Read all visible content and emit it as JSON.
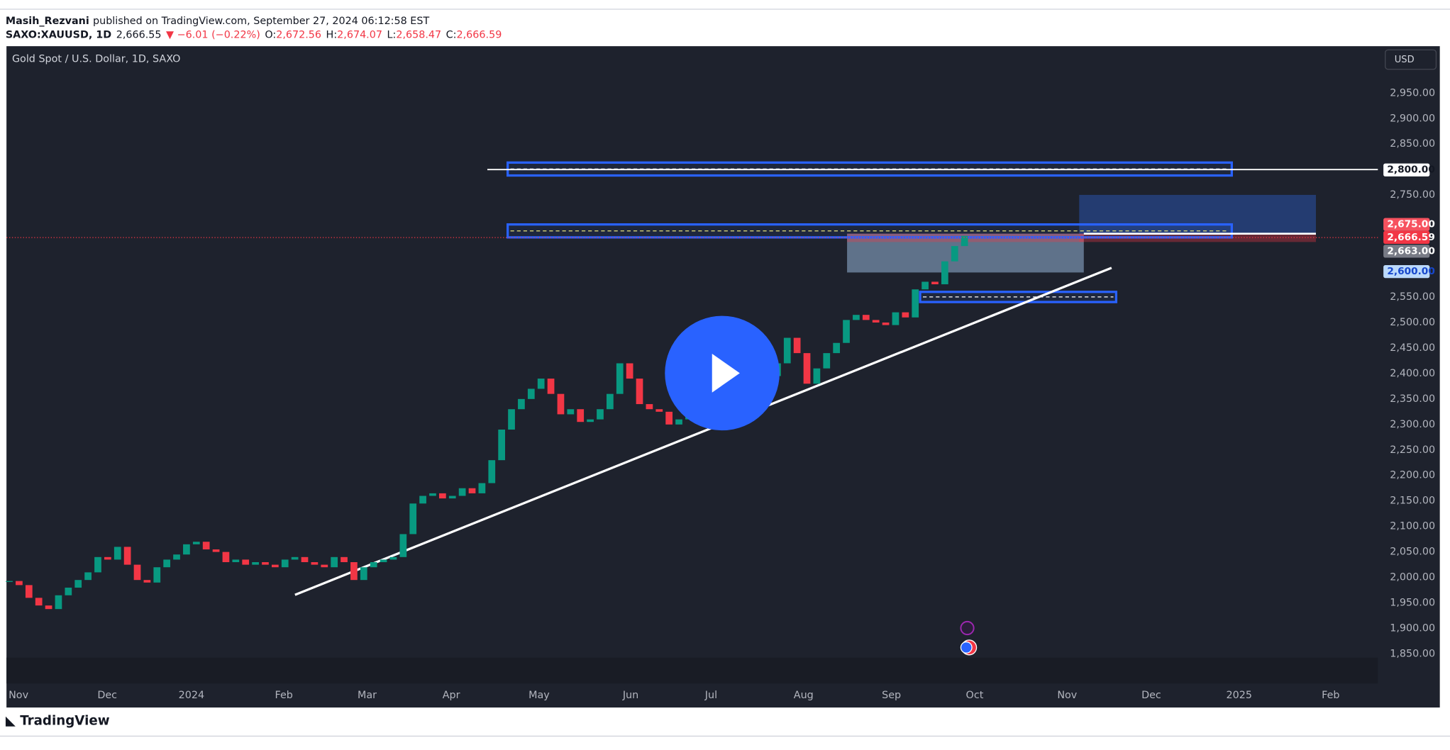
{
  "header": {
    "author": "Masih_Rezvani",
    "published": "published on TradingView.com, September 27, 2024 06:12:58 EST",
    "symbol": "SAXO:XAUUSD, 1D",
    "last": "2,666.55",
    "change": "▼ −6.01 (−0.22%)",
    "ohlc": [
      {
        "key": "O:",
        "value": "2,672.56"
      },
      {
        "key": "H:",
        "value": "2,674.07"
      },
      {
        "key": "L:",
        "value": "2,658.47"
      },
      {
        "key": "C:",
        "value": "2,666.59"
      }
    ]
  },
  "chart_data": {
    "type": "candlestick",
    "title": "Gold Spot / U.S. Dollar, 1D, SAXO",
    "currency": "USD",
    "up_color": "#089981",
    "down_color": "#f23645",
    "closes": [
      1993,
      1985,
      1960,
      1945,
      1938,
      1965,
      1980,
      1995,
      2010,
      2040,
      2035,
      2060,
      2025,
      1995,
      1990,
      2020,
      2035,
      2045,
      2065,
      2070,
      2055,
      2050,
      2030,
      2035,
      2025,
      2030,
      2025,
      2020,
      2035,
      2040,
      2030,
      2025,
      2020,
      2040,
      2030,
      1995,
      2020,
      2030,
      2035,
      2040,
      2085,
      2145,
      2160,
      2165,
      2155,
      2160,
      2175,
      2165,
      2185,
      2230,
      2290,
      2330,
      2350,
      2370,
      2390,
      2360,
      2320,
      2330,
      2305,
      2310,
      2330,
      2360,
      2420,
      2390,
      2340,
      2330,
      2325,
      2300,
      2310,
      2320,
      2335,
      2330,
      2325,
      2360,
      2380,
      2400,
      2415,
      2395,
      2420,
      2470,
      2440,
      2380,
      2410,
      2440,
      2460,
      2505,
      2515,
      2505,
      2500,
      2495,
      2520,
      2510,
      2565,
      2580,
      2575,
      2620,
      2650,
      2670
    ],
    "ylim": [
      1792,
      3042
    ],
    "yticks": [
      {
        "value": 1850,
        "label": "1,850.00"
      },
      {
        "value": 1900,
        "label": "1,900.00"
      },
      {
        "value": 1950,
        "label": "1,950.00"
      },
      {
        "value": 2000,
        "label": "2,000.00"
      },
      {
        "value": 2050,
        "label": "2,050.00"
      },
      {
        "value": 2100,
        "label": "2,100.00"
      },
      {
        "value": 2150,
        "label": "2,150.00"
      },
      {
        "value": 2200,
        "label": "2,200.00"
      },
      {
        "value": 2250,
        "label": "2,250.00"
      },
      {
        "value": 2300,
        "label": "2,300.00"
      },
      {
        "value": 2350,
        "label": "2,350.00"
      },
      {
        "value": 2400,
        "label": "2,400.00"
      },
      {
        "value": 2450,
        "label": "2,450.00"
      },
      {
        "value": 2500,
        "label": "2,500.00"
      },
      {
        "value": 2550,
        "label": "2,550.00"
      },
      {
        "value": 2750,
        "label": "2,750.00"
      },
      {
        "value": 2850,
        "label": "2,850.00"
      },
      {
        "value": 2900,
        "label": "2,900.00"
      },
      {
        "value": 2950,
        "label": "2,950.00"
      }
    ],
    "x_labels": [
      "Nov",
      "Dec",
      "2024",
      "Feb",
      "Mar",
      "Apr",
      "May",
      "Jun",
      "Jul",
      "Aug",
      "Sep",
      "Oct",
      "Nov",
      "Dec",
      "2025",
      "Feb"
    ],
    "price_labels": [
      {
        "value": 2800,
        "label": "2,800.00",
        "color": "#ffffff",
        "text_color": "#131722"
      },
      {
        "value": 2675,
        "label": "2,675.00",
        "color": "#f7525f",
        "text_color": "#ffffff"
      },
      {
        "value": 2666.59,
        "label": "2,666.59",
        "color": "#f23645",
        "text_color": "#ffffff"
      },
      {
        "value": 2663,
        "label": "2,663.00",
        "color": "#787b86",
        "text_color": "#ffffff"
      },
      {
        "value": 2600,
        "label": "2,600.00",
        "color": "#bbd9fb",
        "text_color": "#1848cc"
      }
    ]
  },
  "footer": {
    "brand": "TradingView"
  }
}
